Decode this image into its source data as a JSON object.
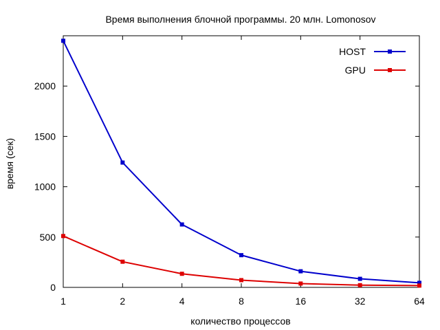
{
  "chart_data": {
    "type": "line",
    "title": "Время выполнения блочной программы. 20 млн. Lomonosov",
    "xlabel": "количество процессов",
    "ylabel": "время (сек)",
    "x": [
      1,
      2,
      4,
      8,
      16,
      32,
      64
    ],
    "x_tick_labels": [
      "1",
      "2",
      "4",
      "8",
      "16",
      "32",
      "64"
    ],
    "x_scale": "log2",
    "xlim": [
      1,
      64
    ],
    "ylim": [
      0,
      2500
    ],
    "y_ticks": [
      0,
      500,
      1000,
      1500,
      2000
    ],
    "y_tick_labels": [
      "0",
      "500",
      "1000",
      "1500",
      "2000"
    ],
    "grid": false,
    "legend_position": "top-right",
    "series": [
      {
        "name": "HOST",
        "color": "#0000cc",
        "values": [
          2450,
          1240,
          625,
          320,
          160,
          85,
          45
        ]
      },
      {
        "name": "GPU",
        "color": "#dd0000",
        "values": [
          510,
          255,
          135,
          72,
          38,
          22,
          18
        ]
      }
    ]
  }
}
